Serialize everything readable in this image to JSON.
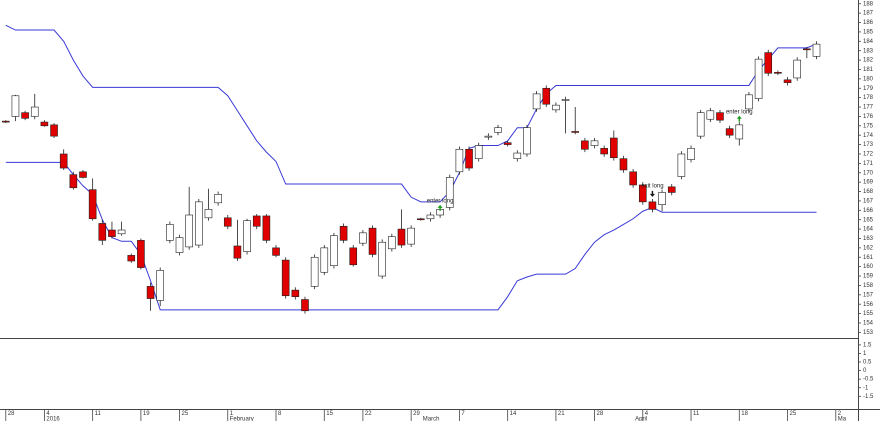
{
  "chart_data": [
    {
      "type": "candlestick",
      "up_color": "#ffffff",
      "down_color": "#e00000",
      "open": [
        175.5,
        176.0,
        176.4,
        176.0,
        175.4,
        175.1,
        172.0,
        169.8,
        170.1,
        168.2,
        164.6,
        163.9,
        163.5,
        161.2,
        162.8,
        157.9,
        156.4,
        162.8,
        161.5,
        162.1,
        162.3,
        165.2,
        166.8,
        165.2,
        162.2,
        161.6,
        165.4,
        165.4,
        162.0,
        160.7,
        157.5,
        156.5,
        157.9,
        159.4,
        160.1,
        164.3,
        162.0,
        162.5,
        164.1,
        159.0,
        161.9,
        164.0,
        162.4,
        165.1,
        165.1,
        165.5,
        166.3,
        170.1,
        172.5,
        171.5,
        173.8,
        174.3,
        173.2,
        171.5,
        172.0,
        176.8,
        179.0,
        176.7,
        177.7,
        174.4,
        173.4,
        172.9,
        172.6,
        173.7,
        171.5,
        170.1,
        168.7,
        166.9,
        166.6,
        168.5,
        169.6,
        171.4,
        173.9,
        175.7,
        176.4,
        174.7,
        173.6,
        176.8,
        177.9,
        182.8,
        180.7,
        179.9,
        180.1,
        183.2,
        182.4
      ],
      "high": [
        175.6,
        178.3,
        176.6,
        178.4,
        175.6,
        175.3,
        172.5,
        170.1,
        170.3,
        169.4,
        165.0,
        164.8,
        164.8,
        161.4,
        163.0,
        158.3,
        159.9,
        164.8,
        163.4,
        168.5,
        167.2,
        168.3,
        168.0,
        165.5,
        165.0,
        165.1,
        165.6,
        165.6,
        162.3,
        161.0,
        157.8,
        156.8,
        161.3,
        162.3,
        163.6,
        164.6,
        162.3,
        163.9,
        164.4,
        162.9,
        163.5,
        166.1,
        164.4,
        165.2,
        165.8,
        166.4,
        169.8,
        172.8,
        172.8,
        173.2,
        174.2,
        175.1,
        173.4,
        172.4,
        175.1,
        178.7,
        179.3,
        177.5,
        178.1,
        177.0,
        173.7,
        173.7,
        172.9,
        174.5,
        171.8,
        170.4,
        169.0,
        167.2,
        168.2,
        168.8,
        172.3,
        172.9,
        176.7,
        176.9,
        176.7,
        175.0,
        175.4,
        178.6,
        182.4,
        183.1,
        180.9,
        180.2,
        182.3,
        183.4,
        184.0
      ],
      "low": [
        175.3,
        175.5,
        175.6,
        175.7,
        174.9,
        173.7,
        170.3,
        168.2,
        169.4,
        164.9,
        162.3,
        163.0,
        163.3,
        160.4,
        159.7,
        155.3,
        155.8,
        162.5,
        161.2,
        161.8,
        162.0,
        164.9,
        166.5,
        164.0,
        160.6,
        161.3,
        164.0,
        162.5,
        161.0,
        156.6,
        156.5,
        155.0,
        157.6,
        159.1,
        159.8,
        162.5,
        160.0,
        162.2,
        161.0,
        158.7,
        161.6,
        162.0,
        162.1,
        164.9,
        164.8,
        165.2,
        166.0,
        169.8,
        170.2,
        171.2,
        173.5,
        174.0,
        172.8,
        171.2,
        171.7,
        176.5,
        177.0,
        176.4,
        174.2,
        174.1,
        172.2,
        172.6,
        171.7,
        171.3,
        170.0,
        168.4,
        166.6,
        165.8,
        165.9,
        167.6,
        169.3,
        171.1,
        173.6,
        175.4,
        175.3,
        173.7,
        172.9,
        176.5,
        177.6,
        180.3,
        180.4,
        179.3,
        179.8,
        182.2,
        182.1
      ],
      "close": [
        175.4,
        178.2,
        175.8,
        177.0,
        175.0,
        173.9,
        170.5,
        168.4,
        169.5,
        165.1,
        162.8,
        163.2,
        163.9,
        160.6,
        159.9,
        156.6,
        159.6,
        164.5,
        163.1,
        165.5,
        166.9,
        166.1,
        167.7,
        164.3,
        160.9,
        164.9,
        164.3,
        162.8,
        161.2,
        156.9,
        156.8,
        155.3,
        161.0,
        162.0,
        163.3,
        162.8,
        160.2,
        163.6,
        161.3,
        162.6,
        163.2,
        162.3,
        164.1,
        165.0,
        165.5,
        166.1,
        169.5,
        172.5,
        170.5,
        172.9,
        173.9,
        174.8,
        173.0,
        172.1,
        174.8,
        178.4,
        177.3,
        177.2,
        177.8,
        174.3,
        172.5,
        173.4,
        172.0,
        171.6,
        170.3,
        168.7,
        166.9,
        166.1,
        167.9,
        167.9,
        172.0,
        172.6,
        176.4,
        176.6,
        175.6,
        174.0,
        175.1,
        178.3,
        182.1,
        180.6,
        180.6,
        179.6,
        182.0,
        183.1,
        183.7
      ],
      "series": [
        {
          "color": "#3a3ad8",
          "values": [
            185.7,
            185.2,
            185.2,
            185.2,
            185.2,
            185.2,
            184.0,
            182.0,
            180.3,
            179.1,
            179.1,
            179.1,
            179.1,
            179.1,
            179.1,
            179.1,
            179.1,
            179.1,
            179.1,
            179.1,
            179.1,
            179.1,
            179.1,
            178.2,
            176.6,
            175.0,
            173.4,
            172.2,
            171.2,
            168.8,
            168.8,
            168.8,
            168.8,
            168.8,
            168.8,
            168.8,
            168.8,
            168.8,
            168.8,
            168.8,
            168.8,
            168.8,
            167.4,
            166.9,
            166.9,
            166.9,
            168.0,
            170.0,
            172.6,
            172.9,
            172.9,
            172.9,
            173.4,
            174.8,
            174.8,
            176.8,
            178.4,
            179.3,
            179.3,
            179.3,
            179.3,
            179.3,
            179.3,
            179.3,
            179.3,
            179.3,
            179.3,
            179.3,
            179.3,
            179.3,
            179.3,
            179.3,
            179.3,
            179.3,
            179.3,
            179.3,
            179.3,
            179.3,
            180.9,
            182.1,
            183.3,
            183.3,
            183.3,
            183.3,
            183.7
          ]
        },
        {
          "color": "#3a3ad8",
          "values": [
            171.1,
            171.1,
            171.1,
            171.1,
            171.1,
            171.1,
            171.1,
            169.8,
            168.6,
            167.7,
            165.0,
            163.1,
            162.7,
            162.7,
            161.3,
            158.5,
            155.4,
            155.4,
            155.4,
            155.4,
            155.4,
            155.4,
            155.4,
            155.4,
            155.4,
            155.4,
            155.4,
            155.4,
            155.4,
            155.4,
            155.4,
            155.4,
            155.4,
            155.4,
            155.4,
            155.4,
            155.4,
            155.4,
            155.4,
            155.4,
            155.4,
            155.4,
            155.4,
            155.4,
            155.4,
            155.4,
            155.4,
            155.4,
            155.4,
            155.4,
            155.4,
            155.4,
            156.8,
            158.5,
            158.9,
            159.2,
            159.2,
            159.2,
            159.2,
            159.8,
            161.3,
            162.6,
            163.4,
            163.9,
            164.5,
            165.1,
            165.9,
            166.3,
            165.8,
            165.8,
            165.8,
            165.8,
            165.8,
            165.8,
            165.8,
            165.8,
            165.8,
            165.8,
            165.8,
            165.8,
            165.8,
            165.8,
            165.8,
            165.8,
            165.8
          ]
        }
      ],
      "annotations": [
        {
          "text": "enter long",
          "x": 45,
          "y": 167.0,
          "signal": "up"
        },
        {
          "text": "exit long",
          "x": 67,
          "y": 168.6,
          "signal": "down"
        },
        {
          "text": "enter long",
          "x": 76,
          "y": 176.5,
          "signal": "up"
        }
      ],
      "ylim": [
        152.4,
        188.4
      ],
      "yticks": [
        188,
        187,
        186,
        185,
        184,
        183,
        182,
        181,
        180,
        179,
        178,
        177,
        176,
        175,
        174,
        173,
        172,
        171,
        170,
        169,
        168,
        167,
        166,
        165,
        164,
        163,
        162,
        161,
        160,
        159,
        158,
        157,
        156,
        155,
        154,
        153
      ],
      "xlim": [
        -0.6,
        88.3
      ],
      "xticks": [
        {
          "value": 0,
          "label": "28"
        },
        {
          "value": 4,
          "label": "4"
        },
        {
          "value": 9,
          "label": "11"
        },
        {
          "value": 14,
          "label": "19"
        },
        {
          "value": 18,
          "label": "25"
        },
        {
          "value": 23,
          "label": "1"
        },
        {
          "value": 28,
          "label": "8"
        },
        {
          "value": 33,
          "label": "15"
        },
        {
          "value": 37,
          "label": "22"
        },
        {
          "value": 42,
          "label": "29"
        },
        {
          "value": 47,
          "label": "7"
        },
        {
          "value": 52,
          "label": "14"
        },
        {
          "value": 57,
          "label": "21"
        },
        {
          "value": 61,
          "label": "28"
        },
        {
          "value": 66,
          "label": "4"
        },
        {
          "value": 71,
          "label": "11"
        },
        {
          "value": 76,
          "label": "18"
        },
        {
          "value": 81,
          "label": "25"
        },
        {
          "value": 86,
          "label": "2"
        }
      ],
      "period_labels": [
        {
          "value": 4,
          "label": "2016"
        },
        {
          "value": 23,
          "label": "February"
        },
        {
          "value": 43,
          "label": "March"
        },
        {
          "value": 65,
          "label": "April"
        },
        {
          "value": 86,
          "label": "Ma"
        }
      ]
    },
    {
      "type": "indicator",
      "ylim": [
        -2.3,
        1.9
      ],
      "yticks": [
        1.5,
        1,
        0.5,
        0,
        -0.5,
        -1,
        -1.5
      ]
    }
  ]
}
